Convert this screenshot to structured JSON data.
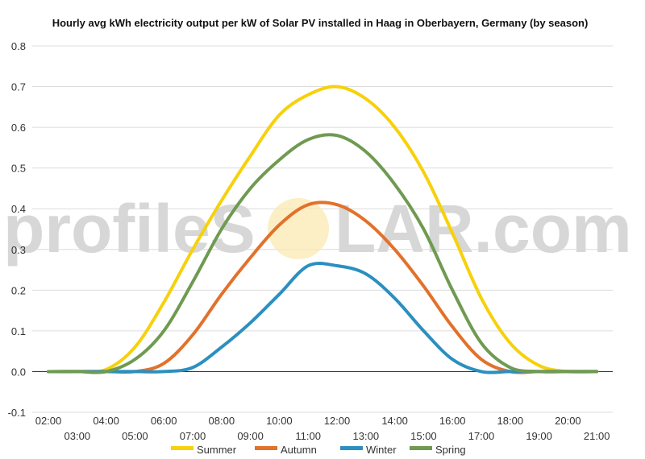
{
  "chart_data": {
    "type": "line",
    "title": "Hourly avg kWh electricity output per kW of Solar PV installed in Haag in Oberbayern, Germany (by season)",
    "xlabel": "",
    "ylabel": "",
    "ylim": [
      -0.1,
      0.8
    ],
    "y_ticks": [
      "0.8",
      "0.7",
      "0.6",
      "0.5",
      "0.4",
      "0.3",
      "0.2",
      "0.1",
      "0.0",
      "-0.1"
    ],
    "x_labels_top": [
      "02:00",
      "04:00",
      "06:00",
      "08:00",
      "10:00",
      "12:00",
      "14:00",
      "16:00",
      "18:00",
      "20:00"
    ],
    "x_labels_bottom": [
      "03:00",
      "05:00",
      "07:00",
      "09:00",
      "11:00",
      "13:00",
      "15:00",
      "17:00",
      "19:00",
      "21:00"
    ],
    "x": [
      "02:00",
      "03:00",
      "04:00",
      "05:00",
      "06:00",
      "07:00",
      "08:00",
      "09:00",
      "10:00",
      "11:00",
      "12:00",
      "13:00",
      "14:00",
      "15:00",
      "16:00",
      "17:00",
      "18:00",
      "19:00",
      "20:00",
      "21:00"
    ],
    "grid": true,
    "legend_position": "bottom",
    "series": [
      {
        "name": "Summer",
        "color": "#f6d10c",
        "values": [
          0,
          0,
          0.005,
          0.06,
          0.17,
          0.3,
          0.42,
          0.53,
          0.63,
          0.68,
          0.7,
          0.67,
          0.6,
          0.49,
          0.34,
          0.18,
          0.07,
          0.015,
          0,
          0
        ]
      },
      {
        "name": "Autumn",
        "color": "#e2712a",
        "values": [
          0,
          0,
          0,
          0,
          0.02,
          0.09,
          0.19,
          0.28,
          0.36,
          0.41,
          0.41,
          0.37,
          0.3,
          0.21,
          0.11,
          0.03,
          0,
          0,
          0,
          0
        ]
      },
      {
        "name": "Winter",
        "color": "#2b8fc0",
        "values": [
          0,
          0,
          0,
          0,
          0,
          0.01,
          0.06,
          0.12,
          0.19,
          0.26,
          0.26,
          0.24,
          0.18,
          0.1,
          0.03,
          0,
          0,
          0,
          0,
          0
        ]
      },
      {
        "name": "Spring",
        "color": "#6f9a51",
        "values": [
          0,
          0,
          0,
          0.03,
          0.1,
          0.22,
          0.35,
          0.45,
          0.52,
          0.57,
          0.58,
          0.54,
          0.46,
          0.35,
          0.2,
          0.07,
          0.01,
          0,
          0,
          0
        ]
      }
    ]
  },
  "watermark": {
    "text_left": "profileS",
    "text_right": "LAR.com"
  }
}
